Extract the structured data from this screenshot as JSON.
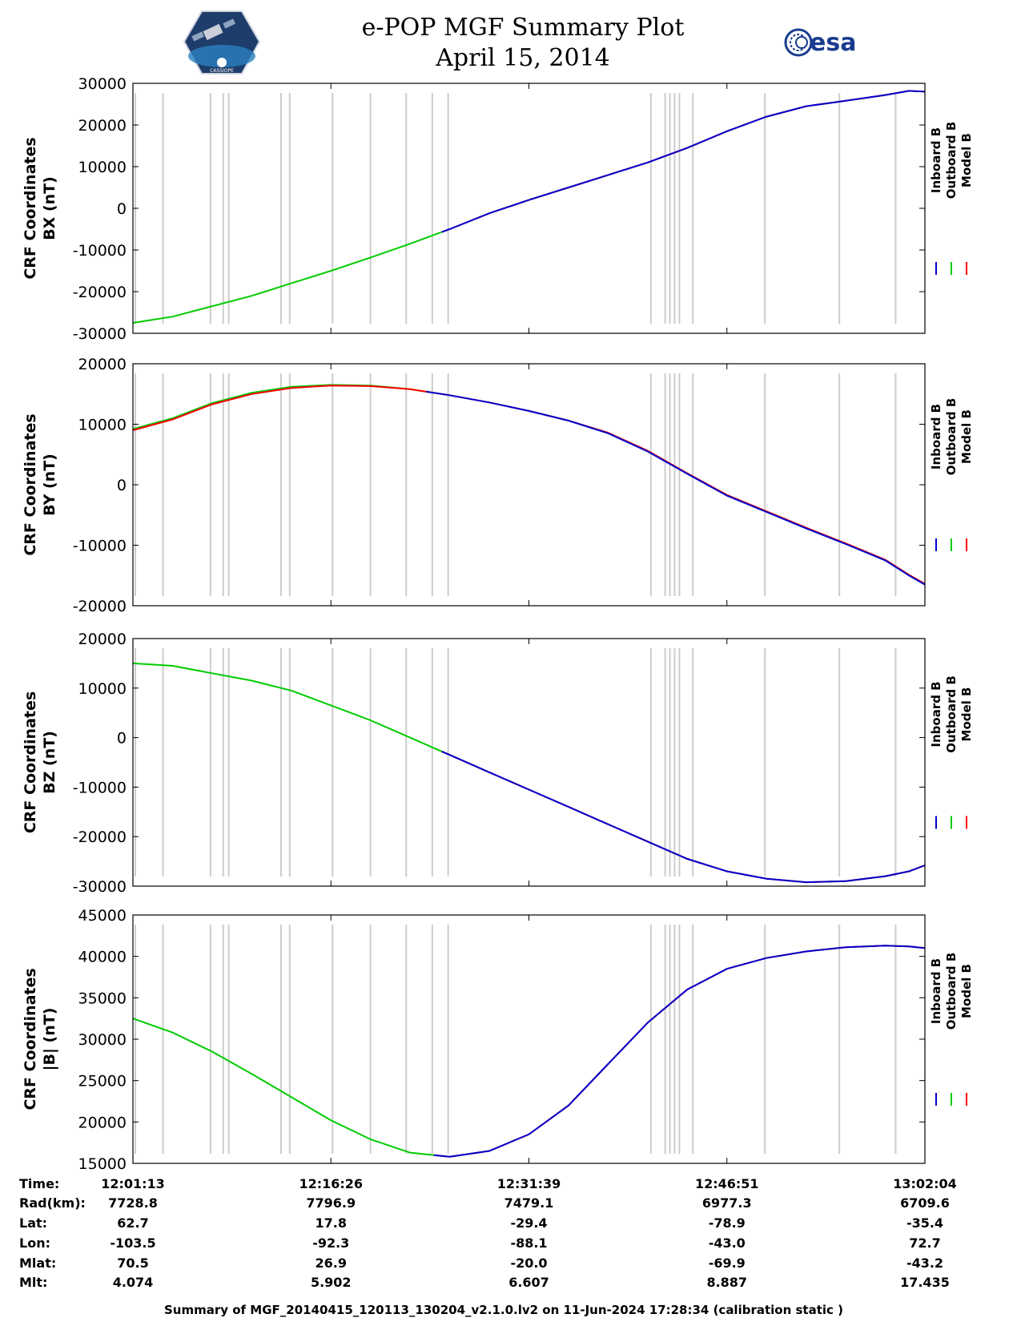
{
  "header": {
    "title_line1": "e-POP MGF Summary Plot",
    "title_line2": "April 15, 2014",
    "left_logo_text": "CASSIOPE",
    "right_logo_text": "esa"
  },
  "colors": {
    "inboard": "#0000cc",
    "outboard": "#00cc00",
    "model": "#ff0000",
    "gap": "#cccccc",
    "axis": "#000000"
  },
  "legend": [
    "Inboard B",
    "Outboard B",
    "Model B"
  ],
  "chart_data": [
    {
      "type": "line",
      "ylabel": [
        "CRF Coordinates",
        "BX (nT)"
      ],
      "ylim": [
        -30000,
        30000
      ],
      "yticks": [
        30000,
        20000,
        10000,
        0,
        -10000,
        -20000,
        -30000
      ],
      "x": [
        0,
        0.05,
        0.1,
        0.15,
        0.2,
        0.25,
        0.3,
        0.35,
        0.4,
        0.45,
        0.5,
        0.55,
        0.6,
        0.65,
        0.7,
        0.75,
        0.8,
        0.85,
        0.9,
        0.95,
        0.98,
        1.0
      ],
      "series": [
        {
          "name": "Outboard B",
          "x_range": [
            0,
            0.39
          ],
          "values": [
            -27500,
            -26000,
            -23500,
            -21000,
            -18000,
            -15000,
            -11800,
            -8500,
            -5000,
            -1200,
            2000,
            5000,
            8000,
            11000,
            14500,
            18500,
            22000,
            24500,
            25800,
            27200,
            28200,
            28000
          ]
        },
        {
          "name": "Model B",
          "x_range": [
            0.39,
            1.0
          ],
          "values": [
            -27500,
            -26000,
            -23500,
            -21000,
            -18000,
            -15000,
            -11800,
            -8500,
            -5000,
            -1200,
            2000,
            5000,
            8000,
            11000,
            14500,
            18500,
            22000,
            24500,
            25800,
            27200,
            28200,
            28000
          ]
        },
        {
          "name": "Inboard B",
          "x_range": [
            0.39,
            1.0
          ],
          "values": [
            -27500,
            -26000,
            -23500,
            -21000,
            -18000,
            -15000,
            -11800,
            -8500,
            -5000,
            -1200,
            2000,
            5000,
            8000,
            11000,
            14500,
            18500,
            22000,
            24500,
            25800,
            27200,
            28200,
            28000
          ]
        }
      ]
    },
    {
      "type": "line",
      "ylabel": [
        "CRF Coordinates",
        "BY (nT)"
      ],
      "ylim": [
        -20000,
        20000
      ],
      "yticks": [
        20000,
        10000,
        0,
        -10000,
        -20000
      ],
      "x": [
        0,
        0.05,
        0.1,
        0.15,
        0.2,
        0.25,
        0.3,
        0.35,
        0.4,
        0.45,
        0.5,
        0.55,
        0.6,
        0.65,
        0.7,
        0.75,
        0.8,
        0.85,
        0.9,
        0.95,
        0.98,
        1.0
      ],
      "series": [
        {
          "name": "Outboard B",
          "x_range": [
            0,
            0.37
          ],
          "values": [
            9200,
            11000,
            13500,
            15200,
            16200,
            16500,
            16400,
            15800,
            14800,
            13600,
            12200,
            10600,
            8500,
            5500,
            1800,
            -1800,
            -4500,
            -7200,
            -9800,
            -12500,
            -15000,
            -16500
          ]
        },
        {
          "name": "Model B",
          "x_range": [
            0,
            1.0
          ],
          "values": [
            9000,
            10800,
            13300,
            15000,
            16000,
            16400,
            16300,
            15800,
            14800,
            13600,
            12200,
            10600,
            8600,
            5600,
            1900,
            -1700,
            -4400,
            -7100,
            -9700,
            -12400,
            -14900,
            -16400
          ]
        },
        {
          "name": "Inboard B",
          "x_range": [
            0.37,
            1.0
          ],
          "values": [
            9200,
            11000,
            13500,
            15200,
            16200,
            16500,
            16400,
            15800,
            14800,
            13600,
            12200,
            10600,
            8500,
            5500,
            1800,
            -1800,
            -4500,
            -7200,
            -9800,
            -12500,
            -15000,
            -16500
          ]
        }
      ]
    },
    {
      "type": "line",
      "ylabel": [
        "CRF Coordinates",
        "BZ (nT)"
      ],
      "ylim": [
        -30000,
        20000
      ],
      "yticks": [
        20000,
        10000,
        0,
        -10000,
        -20000,
        -30000
      ],
      "x": [
        0,
        0.05,
        0.1,
        0.15,
        0.2,
        0.25,
        0.3,
        0.35,
        0.4,
        0.45,
        0.5,
        0.55,
        0.6,
        0.65,
        0.7,
        0.75,
        0.8,
        0.85,
        0.9,
        0.95,
        0.98,
        1.0
      ],
      "series": [
        {
          "name": "Outboard B",
          "x_range": [
            0,
            0.39
          ],
          "values": [
            15000,
            14500,
            13000,
            11500,
            9500,
            6500,
            3500,
            0,
            -3500,
            -7000,
            -10500,
            -14000,
            -17500,
            -21000,
            -24500,
            -27000,
            -28500,
            -29200,
            -29000,
            -28000,
            -27000,
            -25800
          ]
        },
        {
          "name": "Model B",
          "x_range": [
            0.39,
            1.0
          ],
          "values": [
            15000,
            14500,
            13000,
            11500,
            9500,
            6500,
            3500,
            0,
            -3500,
            -7000,
            -10500,
            -14000,
            -17500,
            -21000,
            -24500,
            -27000,
            -28500,
            -29200,
            -29000,
            -28000,
            -27000,
            -25800
          ]
        },
        {
          "name": "Inboard B",
          "x_range": [
            0.39,
            1.0
          ],
          "values": [
            15000,
            14500,
            13000,
            11500,
            9500,
            6500,
            3500,
            0,
            -3500,
            -7000,
            -10500,
            -14000,
            -17500,
            -21000,
            -24500,
            -27000,
            -28500,
            -29200,
            -29000,
            -28000,
            -27000,
            -25800
          ]
        }
      ]
    },
    {
      "type": "line",
      "ylabel": [
        "CRF Coordinates",
        "|B| (nT)"
      ],
      "ylim": [
        15000,
        45000
      ],
      "yticks": [
        45000,
        40000,
        35000,
        30000,
        25000,
        20000,
        15000
      ],
      "x": [
        0,
        0.05,
        0.1,
        0.15,
        0.2,
        0.25,
        0.3,
        0.35,
        0.4,
        0.45,
        0.5,
        0.55,
        0.6,
        0.65,
        0.7,
        0.75,
        0.8,
        0.85,
        0.9,
        0.95,
        0.98,
        1.0
      ],
      "series": [
        {
          "name": "Outboard B",
          "x_range": [
            0,
            0.38
          ],
          "values": [
            32500,
            30800,
            28500,
            25800,
            23000,
            20200,
            17900,
            16300,
            15800,
            16500,
            18500,
            22000,
            27000,
            32000,
            36000,
            38500,
            39800,
            40600,
            41100,
            41300,
            41200,
            41000
          ]
        },
        {
          "name": "Model B",
          "x_range": [
            0.38,
            1.0
          ],
          "values": [
            32500,
            30800,
            28500,
            25800,
            23000,
            20200,
            17900,
            16300,
            15800,
            16500,
            18500,
            22000,
            27000,
            32000,
            36000,
            38500,
            39800,
            40600,
            41100,
            41300,
            41200,
            41000
          ]
        },
        {
          "name": "Inboard B",
          "x_range": [
            0.38,
            1.0
          ],
          "values": [
            32500,
            30800,
            28500,
            25800,
            23000,
            20200,
            17900,
            16300,
            15800,
            16500,
            18500,
            22000,
            27000,
            32000,
            36000,
            38500,
            39800,
            40600,
            41100,
            41300,
            41200,
            41000
          ]
        }
      ]
    }
  ],
  "gap_times": [
    0.003,
    0.038,
    0.098,
    0.114,
    0.121,
    0.187,
    0.198,
    0.252,
    0.3,
    0.345,
    0.378,
    0.398,
    0.654,
    0.672,
    0.678,
    0.684,
    0.69,
    0.707,
    0.798,
    0.892,
    0.963
  ],
  "table": {
    "row_labels": [
      "Time:",
      "Rad(km):",
      "Lat:",
      "Lon:",
      "Mlat:",
      "Mlt:"
    ],
    "columns": [
      {
        "x": 0.0,
        "values": [
          "12:01:13",
          "7728.8",
          "62.7",
          "-103.5",
          "70.5",
          "4.074"
        ]
      },
      {
        "x": 0.25,
        "values": [
          "12:16:26",
          "7796.9",
          "17.8",
          "-92.3",
          "26.9",
          "5.902"
        ]
      },
      {
        "x": 0.5,
        "values": [
          "12:31:39",
          "7479.1",
          "-29.4",
          "-88.1",
          "-20.0",
          "6.607"
        ]
      },
      {
        "x": 0.75,
        "values": [
          "12:46:51",
          "6977.3",
          "-78.9",
          "-43.0",
          "-69.9",
          "8.887"
        ]
      },
      {
        "x": 1.0,
        "values": [
          "13:02:04",
          "6709.6",
          "-35.4",
          "72.7",
          "-43.2",
          "17.435"
        ]
      }
    ]
  },
  "footer": "Summary of MGF_20140415_120113_130204_v2.1.0.lv2 on 11-Jun-2024 17:28:34 (calibration static )"
}
